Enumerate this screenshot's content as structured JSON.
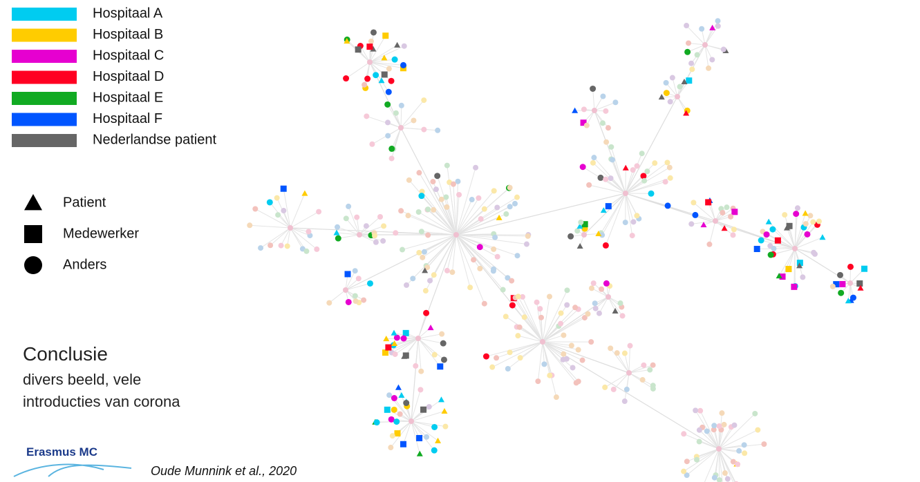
{
  "legend": {
    "groups": [
      {
        "label": "Hospitaal A",
        "color": "#00ccf0"
      },
      {
        "label": "Hospitaal B",
        "color": "#ffcc00"
      },
      {
        "label": "Hospitaal C",
        "color": "#e600d0"
      },
      {
        "label": "Hospitaal D",
        "color": "#ff0022"
      },
      {
        "label": "Hospitaal E",
        "color": "#11aa22"
      },
      {
        "label": "Hospitaal F",
        "color": "#0055ff"
      },
      {
        "label": "Nederlandse patient",
        "color": "#666666"
      }
    ],
    "shapes": [
      {
        "label": "Patient",
        "shape": "triangle"
      },
      {
        "label": "Medewerker",
        "shape": "square"
      },
      {
        "label": "Anders",
        "shape": "circle"
      }
    ]
  },
  "conclusion": {
    "title": "Conclusie",
    "lines": [
      "divers beeld, vele",
      "introducties van corona"
    ]
  },
  "logo": "Erasmus MC",
  "citation": "Oude Munnink et al., 2020"
}
